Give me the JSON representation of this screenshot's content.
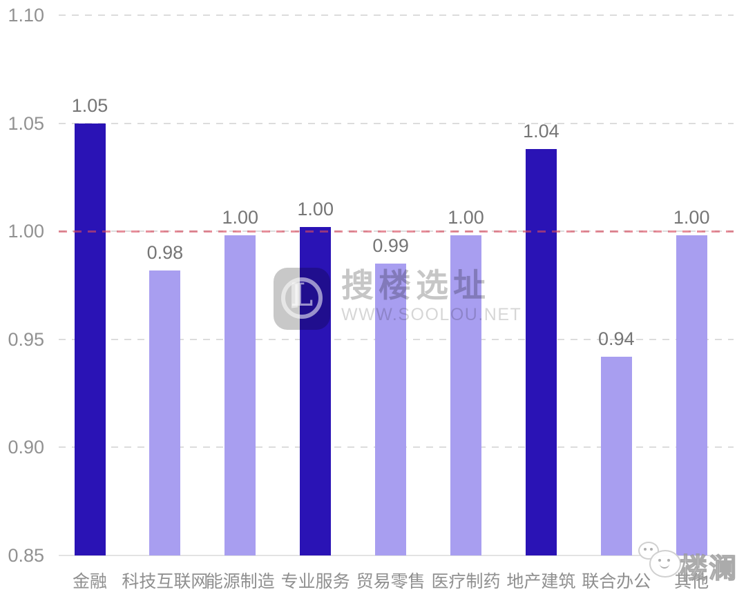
{
  "chart_data": {
    "type": "bar",
    "title": "",
    "xlabel": "",
    "ylabel": "",
    "legend": "none",
    "grid": "horizontal dashed gridlines",
    "categories": [
      "金融",
      "科技互联网",
      "能源制造",
      "专业服务",
      "贸易零售",
      "医疗制药",
      "地产建筑",
      "联合办公",
      "其他"
    ],
    "values": [
      1.05,
      0.98,
      1.0,
      1.0,
      0.99,
      1.0,
      1.04,
      0.94,
      1.0
    ],
    "value_labels": [
      "1.05",
      "0.98",
      "1.00",
      "1.00",
      "0.99",
      "1.00",
      "1.04",
      "0.94",
      "1.00"
    ],
    "plotted_values": [
      1.05,
      0.982,
      0.998,
      1.002,
      0.985,
      0.998,
      1.038,
      0.942,
      0.998
    ],
    "bar_emphasis": [
      "dark",
      "light",
      "light",
      "dark",
      "light",
      "light",
      "dark",
      "light",
      "light"
    ],
    "ylim": [
      0.85,
      1.1
    ],
    "yticks": [
      1.1,
      1.05,
      1.0,
      0.95,
      0.9,
      0.85
    ],
    "ytick_labels": [
      "1.10",
      "1.05",
      "1.00",
      "0.95",
      "0.90",
      "0.85"
    ],
    "reference_line": {
      "value": 1.0,
      "style": "dashed",
      "color": "#dc4a5e"
    }
  },
  "colors": {
    "bar_dark": "#2a13b5",
    "bar_light": "#a89ef0",
    "grid": "#dcdcdc",
    "baseline": "#e3e3e3",
    "tick_text": "#919191",
    "value_text": "#757575",
    "category_text": "#8f8f8f",
    "reference": "#dc4a5e",
    "watermark": "#c6c6c6"
  },
  "watermark_center": {
    "logo_letter": "L",
    "brand": "搜楼选址",
    "url": "WWW.SOOLOU.NET"
  },
  "watermark_corner": {
    "text": "楼澜"
  }
}
